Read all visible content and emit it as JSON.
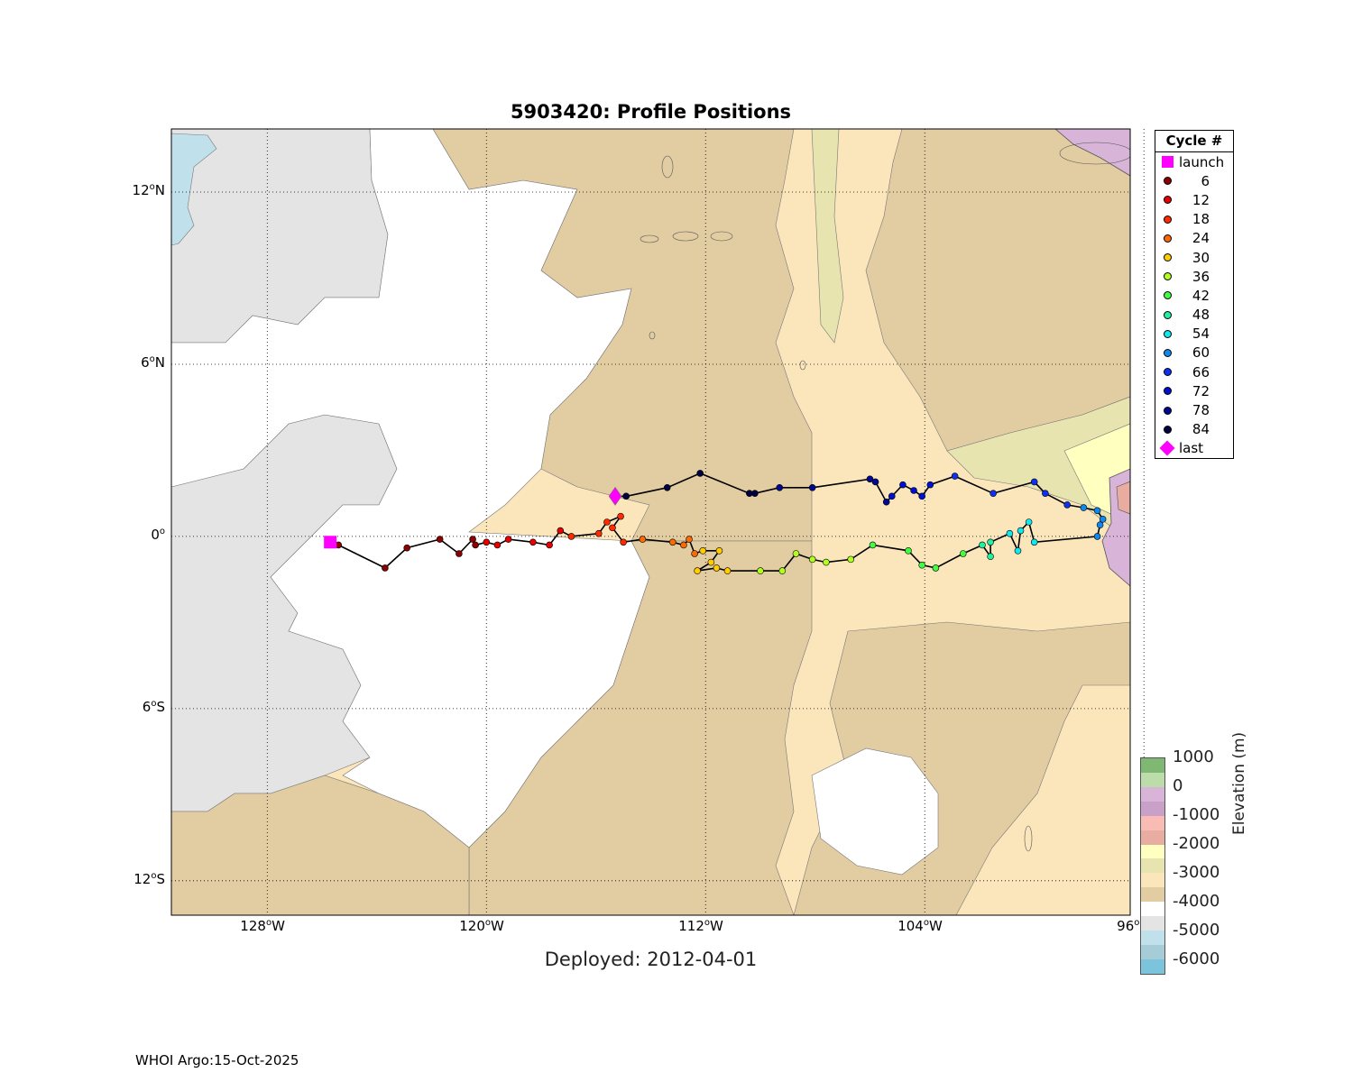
{
  "title": "5903420: Profile Positions",
  "deployed": "Deployed: 2012-04-01",
  "footer": "WHOI Argo:15-Oct-2025",
  "lat_ticks": [
    {
      "deg": "12",
      "hem": "N",
      "value": 12
    },
    {
      "deg": "6",
      "hem": "N",
      "value": 6
    },
    {
      "deg": "0",
      "hem": "",
      "value": 0
    },
    {
      "deg": "6",
      "hem": "S",
      "value": -6
    },
    {
      "deg": "12",
      "hem": "S",
      "value": -12
    }
  ],
  "lon_ticks": [
    {
      "deg": "128",
      "hem": "W",
      "value": -128
    },
    {
      "deg": "120",
      "hem": "W",
      "value": -120
    },
    {
      "deg": "112",
      "hem": "W",
      "value": -112
    },
    {
      "deg": "104",
      "hem": "W",
      "value": -104
    },
    {
      "deg": "96",
      "hem": "W",
      "value": -96
    }
  ],
  "legend": {
    "header": "Cycle #",
    "launch_label": "launch",
    "last_label": "last",
    "cycles": [
      {
        "label": "6",
        "color": "#8b0000"
      },
      {
        "label": "12",
        "color": "#e60000"
      },
      {
        "label": "18",
        "color": "#ff2a00"
      },
      {
        "label": "24",
        "color": "#ff6a00"
      },
      {
        "label": "30",
        "color": "#ffcc00"
      },
      {
        "label": "36",
        "color": "#b0ff20"
      },
      {
        "label": "42",
        "color": "#40ff40"
      },
      {
        "label": "48",
        "color": "#20f0a0"
      },
      {
        "label": "54",
        "color": "#10e8f0"
      },
      {
        "label": "60",
        "color": "#1088f0"
      },
      {
        "label": "66",
        "color": "#1030f0"
      },
      {
        "label": "72",
        "color": "#0010d0"
      },
      {
        "label": "78",
        "color": "#000890"
      },
      {
        "label": "84",
        "color": "#000040"
      }
    ],
    "launch_color": "#ff00ff",
    "last_color": "#ff00ff"
  },
  "colorbar": {
    "label": "Elevation (m)",
    "ticks": [
      "1000",
      "0",
      "-1000",
      "-2000",
      "-3000",
      "-4000",
      "-5000",
      "-6000"
    ],
    "colors": [
      "#7fb872",
      "#bcdcaa",
      "#d8b4d8",
      "#c8a0c8",
      "#f8bcb4",
      "#e8aca0",
      "#ffffc0",
      "#e8e4b0",
      "#fbe6bc",
      "#e2cca2",
      "#ffffff",
      "#e4e4e4",
      "#c0e0ec",
      "#a6ccd8",
      "#7cc4dc"
    ]
  },
  "map_colors": {
    "abyss_deep": "#e4e4e4",
    "abyss_mid": "#ffffff",
    "plain": "#e2cca2",
    "rise": "#fbe6bc",
    "ridge": "#e8e4b0",
    "shelf": "#ffffc0",
    "deep_blue": "#c0e0ec",
    "land": "#d8b4d8",
    "track": "#000000"
  },
  "chart_data": {
    "type": "scatter",
    "x_axis": "longitude",
    "y_axis": "latitude",
    "xlim": [
      -131.5,
      -96.5
    ],
    "ylim": [
      -13.2,
      14.2
    ],
    "launch": {
      "lon": -125.7,
      "lat": -0.2
    },
    "last": {
      "lon": -115.3,
      "lat": 1.4
    },
    "profiles": [
      {
        "lon": -125.4,
        "lat": -0.3,
        "color": "#8b0000"
      },
      {
        "lon": -123.7,
        "lat": -1.1,
        "color": "#8b0000"
      },
      {
        "lon": -122.9,
        "lat": -0.4,
        "color": "#8b0000"
      },
      {
        "lon": -121.7,
        "lat": -0.1,
        "color": "#8b0000"
      },
      {
        "lon": -121.0,
        "lat": -0.6,
        "color": "#8b0000"
      },
      {
        "lon": -120.5,
        "lat": -0.1,
        "color": "#8b0000"
      },
      {
        "lon": -120.4,
        "lat": -0.3,
        "color": "#8b0000"
      },
      {
        "lon": -120.0,
        "lat": -0.2,
        "color": "#e60000"
      },
      {
        "lon": -119.6,
        "lat": -0.3,
        "color": "#e60000"
      },
      {
        "lon": -119.2,
        "lat": -0.1,
        "color": "#e60000"
      },
      {
        "lon": -118.3,
        "lat": -0.2,
        "color": "#e60000"
      },
      {
        "lon": -117.7,
        "lat": -0.3,
        "color": "#e60000"
      },
      {
        "lon": -117.3,
        "lat": 0.2,
        "color": "#e60000"
      },
      {
        "lon": -116.9,
        "lat": 0.0,
        "color": "#ff2a00"
      },
      {
        "lon": -115.9,
        "lat": 0.1,
        "color": "#ff2a00"
      },
      {
        "lon": -115.6,
        "lat": 0.5,
        "color": "#ff2a00"
      },
      {
        "lon": -115.1,
        "lat": 0.7,
        "color": "#ff2a00"
      },
      {
        "lon": -115.4,
        "lat": 0.3,
        "color": "#ff2a00"
      },
      {
        "lon": -115.0,
        "lat": -0.2,
        "color": "#ff2a00"
      },
      {
        "lon": -114.3,
        "lat": -0.1,
        "color": "#ff6a00"
      },
      {
        "lon": -113.2,
        "lat": -0.2,
        "color": "#ff6a00"
      },
      {
        "lon": -112.8,
        "lat": -0.3,
        "color": "#ff6a00"
      },
      {
        "lon": -112.6,
        "lat": -0.1,
        "color": "#ff6a00"
      },
      {
        "lon": -112.4,
        "lat": -0.6,
        "color": "#ff6a00"
      },
      {
        "lon": -112.1,
        "lat": -0.5,
        "color": "#ffcc00"
      },
      {
        "lon": -111.5,
        "lat": -0.5,
        "color": "#ffcc00"
      },
      {
        "lon": -111.8,
        "lat": -0.9,
        "color": "#ffcc00"
      },
      {
        "lon": -112.3,
        "lat": -1.2,
        "color": "#ffcc00"
      },
      {
        "lon": -111.6,
        "lat": -1.1,
        "color": "#ffcc00"
      },
      {
        "lon": -111.2,
        "lat": -1.2,
        "color": "#ffcc00"
      },
      {
        "lon": -110.0,
        "lat": -1.2,
        "color": "#b0ff20"
      },
      {
        "lon": -109.2,
        "lat": -1.2,
        "color": "#b0ff20"
      },
      {
        "lon": -108.7,
        "lat": -0.6,
        "color": "#b0ff20"
      },
      {
        "lon": -108.1,
        "lat": -0.8,
        "color": "#b0ff20"
      },
      {
        "lon": -107.6,
        "lat": -0.9,
        "color": "#b0ff20"
      },
      {
        "lon": -106.7,
        "lat": -0.8,
        "color": "#b0ff20"
      },
      {
        "lon": -105.9,
        "lat": -0.3,
        "color": "#40ff40"
      },
      {
        "lon": -104.6,
        "lat": -0.5,
        "color": "#40ff40"
      },
      {
        "lon": -104.1,
        "lat": -1.0,
        "color": "#40ff40"
      },
      {
        "lon": -103.6,
        "lat": -1.1,
        "color": "#40ff40"
      },
      {
        "lon": -102.6,
        "lat": -0.6,
        "color": "#40ff40"
      },
      {
        "lon": -101.9,
        "lat": -0.3,
        "color": "#20f0a0"
      },
      {
        "lon": -101.6,
        "lat": -0.7,
        "color": "#20f0a0"
      },
      {
        "lon": -101.6,
        "lat": -0.2,
        "color": "#20f0a0"
      },
      {
        "lon": -100.9,
        "lat": 0.1,
        "color": "#10e8f0"
      },
      {
        "lon": -100.6,
        "lat": -0.5,
        "color": "#10e8f0"
      },
      {
        "lon": -100.5,
        "lat": 0.2,
        "color": "#10e8f0"
      },
      {
        "lon": -100.2,
        "lat": 0.5,
        "color": "#10e8f0"
      },
      {
        "lon": -100.0,
        "lat": -0.2,
        "color": "#10e8f0"
      },
      {
        "lon": -97.7,
        "lat": 0.0,
        "color": "#1088f0"
      },
      {
        "lon": -97.6,
        "lat": 0.4,
        "color": "#1088f0"
      },
      {
        "lon": -97.5,
        "lat": 0.6,
        "color": "#1088f0"
      },
      {
        "lon": -97.7,
        "lat": 0.9,
        "color": "#1088f0"
      },
      {
        "lon": -98.2,
        "lat": 1.0,
        "color": "#1088f0"
      },
      {
        "lon": -98.8,
        "lat": 1.1,
        "color": "#1030f0"
      },
      {
        "lon": -99.6,
        "lat": 1.5,
        "color": "#1030f0"
      },
      {
        "lon": -100.0,
        "lat": 1.9,
        "color": "#1030f0"
      },
      {
        "lon": -101.5,
        "lat": 1.5,
        "color": "#1030f0"
      },
      {
        "lon": -102.9,
        "lat": 2.1,
        "color": "#1030f0"
      },
      {
        "lon": -103.8,
        "lat": 1.8,
        "color": "#0010d0"
      },
      {
        "lon": -104.1,
        "lat": 1.4,
        "color": "#0010d0"
      },
      {
        "lon": -104.4,
        "lat": 1.6,
        "color": "#0010d0"
      },
      {
        "lon": -104.8,
        "lat": 1.8,
        "color": "#0010d0"
      },
      {
        "lon": -105.2,
        "lat": 1.4,
        "color": "#0010d0"
      },
      {
        "lon": -105.4,
        "lat": 1.2,
        "color": "#000890"
      },
      {
        "lon": -105.8,
        "lat": 1.9,
        "color": "#000890"
      },
      {
        "lon": -106.0,
        "lat": 2.0,
        "color": "#000890"
      },
      {
        "lon": -108.1,
        "lat": 1.7,
        "color": "#000890"
      },
      {
        "lon": -109.3,
        "lat": 1.7,
        "color": "#000890"
      },
      {
        "lon": -110.2,
        "lat": 1.5,
        "color": "#000040"
      },
      {
        "lon": -110.4,
        "lat": 1.5,
        "color": "#000040"
      },
      {
        "lon": -112.2,
        "lat": 2.2,
        "color": "#000040"
      },
      {
        "lon": -113.4,
        "lat": 1.7,
        "color": "#000040"
      },
      {
        "lon": -114.9,
        "lat": 1.4,
        "color": "#000040"
      }
    ]
  }
}
